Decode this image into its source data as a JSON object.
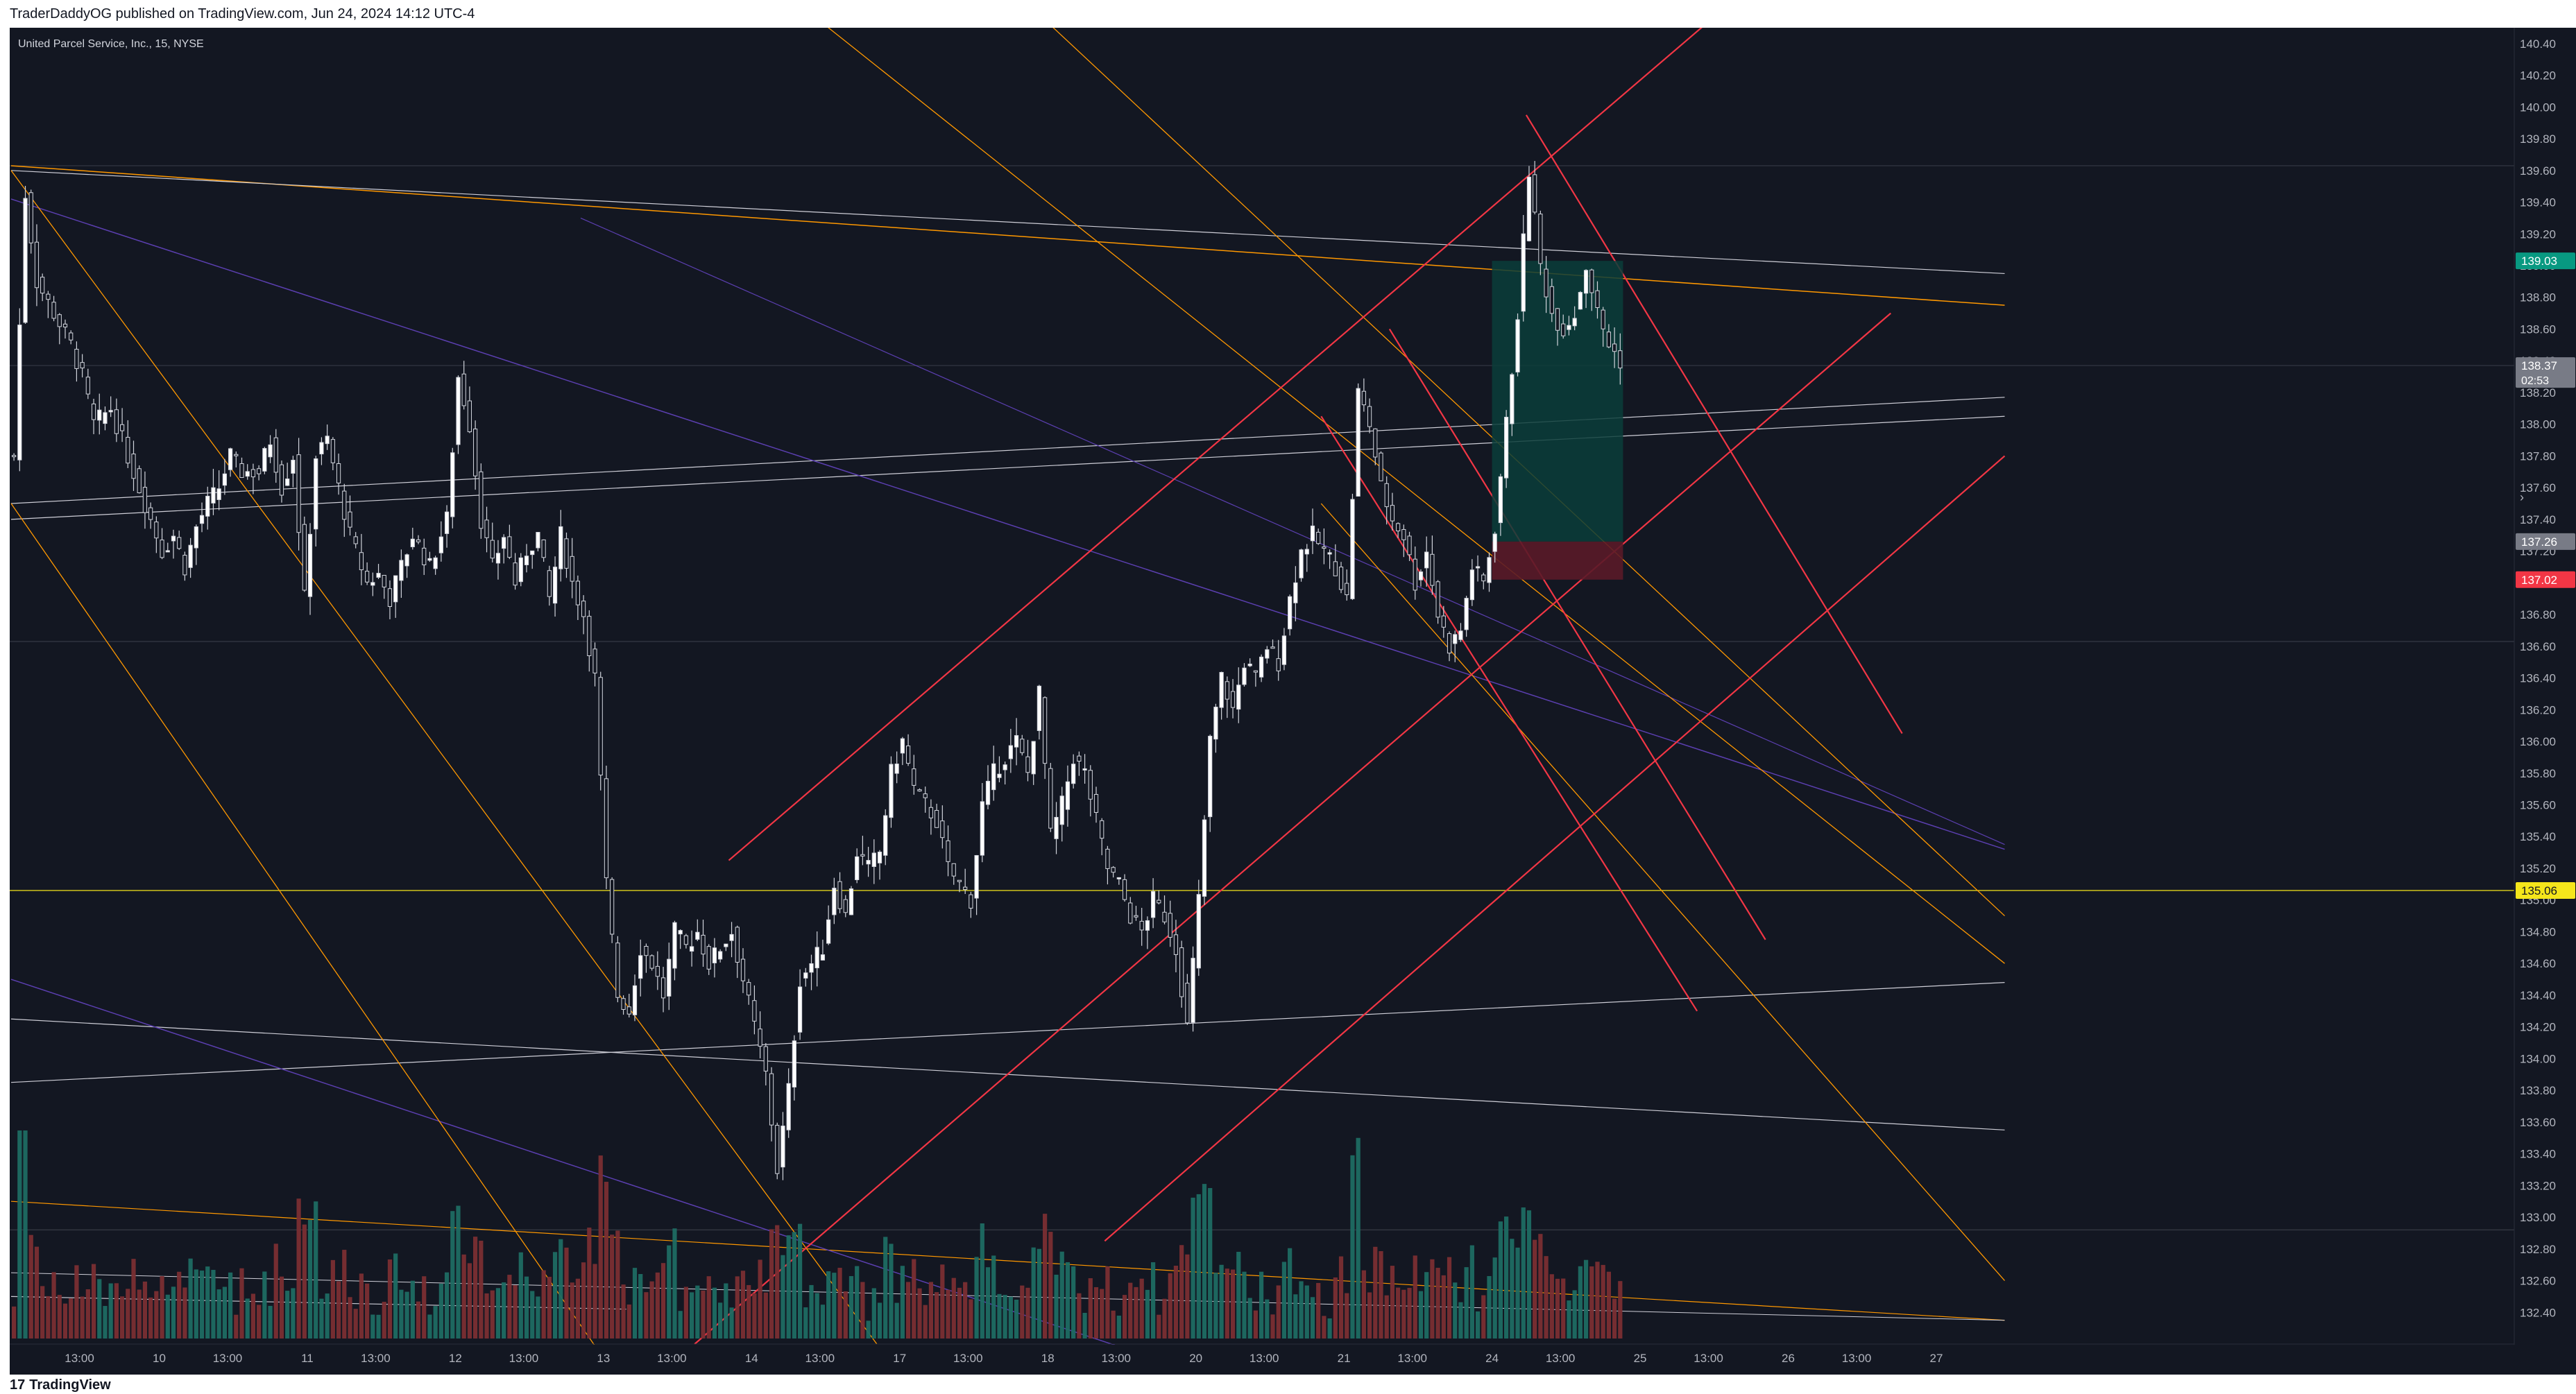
{
  "header": {
    "published_text": "TraderDaddyOG published on TradingView.com, Jun 24, 2024 14:12 UTC-4"
  },
  "footer": {
    "logo_mark": "17",
    "logo_text": "TradingView"
  },
  "chart_data": {
    "type": "candlestick",
    "symbol_title": "United Parcel Service, Inc., 15, NYSE",
    "y_axis": {
      "ylim": [
        132.2,
        140.5
      ],
      "ticks": [
        132.4,
        132.6,
        132.8,
        133.0,
        133.2,
        133.4,
        133.6,
        133.8,
        134.0,
        134.2,
        134.4,
        134.6,
        134.8,
        135.0,
        135.2,
        135.4,
        135.6,
        135.8,
        136.0,
        136.2,
        136.4,
        136.6,
        136.8,
        137.0,
        137.2,
        137.4,
        137.6,
        137.8,
        138.0,
        138.2,
        138.4,
        138.6,
        138.8,
        139.0,
        139.2,
        139.4,
        139.6,
        139.8,
        140.0,
        140.2,
        140.4
      ],
      "tick_labels": [
        "132.40",
        "132.60",
        "132.80",
        "133.00",
        "133.20",
        "133.40",
        "133.60",
        "133.80",
        "134.00",
        "134.20",
        "134.40",
        "134.60",
        "134.80",
        "135.00",
        "135.20",
        "135.40",
        "135.60",
        "135.80",
        "136.00",
        "136.20",
        "136.40",
        "136.60",
        "136.80",
        "137.00",
        "137.20",
        "137.40",
        "137.60",
        "137.80",
        "138.00",
        "138.20",
        "138.40",
        "138.60",
        "138.80",
        "139.00",
        "139.20",
        "139.40",
        "139.60",
        "139.80",
        "140.00",
        "140.20",
        "140.40"
      ]
    },
    "x_axis": {
      "labels": [
        {
          "text": "13:00",
          "bar": 12
        },
        {
          "text": "10",
          "bar": 26
        },
        {
          "text": "13:00",
          "bar": 38
        },
        {
          "text": "11",
          "bar": 52
        },
        {
          "text": "13:00",
          "bar": 64
        },
        {
          "text": "12",
          "bar": 78
        },
        {
          "text": "13:00",
          "bar": 90
        },
        {
          "text": "13",
          "bar": 104
        },
        {
          "text": "13:00",
          "bar": 116
        },
        {
          "text": "14",
          "bar": 130
        },
        {
          "text": "13:00",
          "bar": 142
        },
        {
          "text": "17",
          "bar": 156
        },
        {
          "text": "13:00",
          "bar": 168
        },
        {
          "text": "18",
          "bar": 182
        },
        {
          "text": "13:00",
          "bar": 194
        },
        {
          "text": "20",
          "bar": 208
        },
        {
          "text": "13:00",
          "bar": 220
        },
        {
          "text": "21",
          "bar": 234
        },
        {
          "text": "13:00",
          "bar": 246
        },
        {
          "text": "24",
          "bar": 260
        },
        {
          "text": "13:00",
          "bar": 272
        },
        {
          "text": "25",
          "bar": 286
        },
        {
          "text": "13:00",
          "bar": 298
        },
        {
          "text": "26",
          "bar": 312
        },
        {
          "text": "13:00",
          "bar": 324
        },
        {
          "text": "27",
          "bar": 338
        }
      ]
    },
    "price_labels": [
      {
        "text": "139.03",
        "value": 139.03,
        "color": "#089981"
      },
      {
        "text": "138.37",
        "value": 138.37,
        "color": "#787b86",
        "sub": "02:53"
      },
      {
        "text": "137.26",
        "value": 137.26,
        "color": "#787b86"
      },
      {
        "text": "137.02",
        "value": 137.02,
        "color": "#f23645"
      },
      {
        "text": "135.06",
        "value": 135.06,
        "color": "#f5e61b"
      }
    ],
    "close_path": [
      [
        0,
        137.8
      ],
      [
        2,
        139.45
      ],
      [
        4,
        138.9
      ],
      [
        7,
        138.7
      ],
      [
        10,
        138.5
      ],
      [
        12,
        138.3
      ],
      [
        14,
        138.0
      ],
      [
        17,
        138.1
      ],
      [
        20,
        137.8
      ],
      [
        24,
        137.4
      ],
      [
        26,
        137.2
      ],
      [
        28,
        137.3
      ],
      [
        30,
        137.1
      ],
      [
        32,
        137.35
      ],
      [
        34,
        137.5
      ],
      [
        36,
        137.6
      ],
      [
        38,
        137.8
      ],
      [
        40,
        137.7
      ],
      [
        43,
        137.7
      ],
      [
        45,
        137.9
      ],
      [
        47,
        137.6
      ],
      [
        49,
        137.8
      ],
      [
        51,
        136.9
      ],
      [
        53,
        137.8
      ],
      [
        55,
        137.9
      ],
      [
        57,
        137.6
      ],
      [
        59,
        137.3
      ],
      [
        62,
        137.0
      ],
      [
        64,
        137.05
      ],
      [
        66,
        136.9
      ],
      [
        68,
        137.1
      ],
      [
        70,
        137.3
      ],
      [
        73,
        137.1
      ],
      [
        76,
        137.4
      ],
      [
        78,
        138.3
      ],
      [
        80,
        138.0
      ],
      [
        82,
        137.4
      ],
      [
        84,
        137.1
      ],
      [
        86,
        137.3
      ],
      [
        88,
        137.0
      ],
      [
        90,
        137.2
      ],
      [
        92,
        137.3
      ],
      [
        94,
        136.9
      ],
      [
        96,
        137.3
      ],
      [
        98,
        137.0
      ],
      [
        100,
        136.8
      ],
      [
        102,
        136.4
      ],
      [
        104,
        135.1
      ],
      [
        106,
        134.4
      ],
      [
        108,
        134.3
      ],
      [
        110,
        134.7
      ],
      [
        112,
        134.6
      ],
      [
        114,
        134.4
      ],
      [
        116,
        134.8
      ],
      [
        118,
        134.7
      ],
      [
        120,
        134.8
      ],
      [
        122,
        134.6
      ],
      [
        124,
        134.7
      ],
      [
        126,
        134.8
      ],
      [
        128,
        134.5
      ],
      [
        130,
        134.2
      ],
      [
        132,
        133.9
      ],
      [
        134,
        133.3
      ],
      [
        136,
        133.8
      ],
      [
        138,
        134.5
      ],
      [
        140,
        134.6
      ],
      [
        142,
        134.7
      ],
      [
        144,
        135.1
      ],
      [
        146,
        134.9
      ],
      [
        148,
        135.3
      ],
      [
        150,
        135.2
      ],
      [
        152,
        135.3
      ],
      [
        154,
        135.8
      ],
      [
        156,
        136.0
      ],
      [
        158,
        135.7
      ],
      [
        160,
        135.6
      ],
      [
        162,
        135.5
      ],
      [
        164,
        135.2
      ],
      [
        166,
        135.1
      ],
      [
        168,
        135.0
      ],
      [
        170,
        135.6
      ],
      [
        172,
        135.8
      ],
      [
        174,
        135.9
      ],
      [
        176,
        136.0
      ],
      [
        178,
        135.8
      ],
      [
        180,
        136.3
      ],
      [
        182,
        135.4
      ],
      [
        184,
        135.6
      ],
      [
        186,
        135.9
      ],
      [
        188,
        135.8
      ],
      [
        190,
        135.5
      ],
      [
        192,
        135.2
      ],
      [
        194,
        135.1
      ],
      [
        196,
        134.9
      ],
      [
        198,
        134.8
      ],
      [
        200,
        135.0
      ],
      [
        202,
        134.9
      ],
      [
        204,
        134.7
      ],
      [
        206,
        134.2
      ],
      [
        208,
        135.0
      ],
      [
        210,
        136.0
      ],
      [
        212,
        136.4
      ],
      [
        214,
        136.2
      ],
      [
        216,
        136.5
      ],
      [
        218,
        136.4
      ],
      [
        220,
        136.6
      ],
      [
        222,
        136.5
      ],
      [
        224,
        136.9
      ],
      [
        226,
        137.2
      ],
      [
        228,
        137.3
      ],
      [
        230,
        137.2
      ],
      [
        232,
        137.1
      ],
      [
        234,
        136.9
      ],
      [
        236,
        138.2
      ],
      [
        238,
        138.0
      ],
      [
        240,
        137.6
      ],
      [
        242,
        137.4
      ],
      [
        244,
        137.3
      ],
      [
        246,
        137.0
      ],
      [
        248,
        137.2
      ],
      [
        250,
        136.8
      ],
      [
        252,
        136.6
      ],
      [
        254,
        136.7
      ],
      [
        256,
        137.1
      ],
      [
        258,
        137.0
      ],
      [
        260,
        137.35
      ],
      [
        262,
        138.0
      ],
      [
        264,
        138.7
      ],
      [
        266,
        139.6
      ],
      [
        268,
        139.0
      ],
      [
        270,
        138.7
      ],
      [
        272,
        138.6
      ],
      [
        274,
        138.7
      ],
      [
        276,
        139.0
      ],
      [
        278,
        138.7
      ],
      [
        280,
        138.5
      ],
      [
        282,
        138.4
      ]
    ],
    "volume_max": 2.0,
    "position_box": {
      "start_bar": 260,
      "end_bar": 283,
      "entry": 137.26,
      "target": 139.03,
      "stop": 137.02,
      "colors": {
        "profit": "#0b3d3a",
        "loss": "#5a1a28"
      }
    },
    "horizontal_lines": [
      {
        "value": 135.06,
        "color": "#f5e61b"
      },
      {
        "value": 139.63,
        "color": "#363a45"
      },
      {
        "value": 138.37,
        "color": "#363a45"
      },
      {
        "value": 136.63,
        "color": "#363a45"
      },
      {
        "value": 132.92,
        "color": "#363a45"
      }
    ],
    "trend_lines": [
      {
        "from": [
          0,
          139.63
        ],
        "to": [
          350,
          138.75
        ],
        "color": "#ff9800",
        "width": 1.5
      },
      {
        "from": [
          0,
          139.6
        ],
        "to": [
          350,
          138.95
        ],
        "color": "#cfcfd8",
        "width": 1.2
      },
      {
        "from": [
          0,
          137.4
        ],
        "to": [
          350,
          138.05
        ],
        "color": "#cfcfd8",
        "width": 1.2
      },
      {
        "from": [
          0,
          137.5
        ],
        "to": [
          350,
          138.17
        ],
        "color": "#cfcfd8",
        "width": 1.2
      },
      {
        "from": [
          0,
          133.85
        ],
        "to": [
          350,
          134.48
        ],
        "color": "#cfcfd8",
        "width": 1.2
      },
      {
        "from": [
          0,
          134.25
        ],
        "to": [
          350,
          133.55
        ],
        "color": "#cfcfd8",
        "width": 1.2
      },
      {
        "from": [
          0,
          132.5
        ],
        "to": [
          108,
          132.42
        ],
        "color": "#cfcfd8",
        "width": 1.2
      },
      {
        "from": [
          0,
          133.1
        ],
        "to": [
          350,
          132.35
        ],
        "color": "#ff9800",
        "width": 1.2
      },
      {
        "from": [
          0,
          132.65
        ],
        "to": [
          350,
          132.35
        ],
        "color": "#cfcfd8",
        "width": 1.0
      },
      {
        "from": [
          0,
          139.42
        ],
        "to": [
          350,
          135.32
        ],
        "color": "#5b3fb0",
        "width": 1.5
      },
      {
        "from": [
          100,
          139.3
        ],
        "to": [
          350,
          135.35
        ],
        "color": "#5b3fb0",
        "width": 1.2
      },
      {
        "from": [
          0,
          134.5
        ],
        "to": [
          210,
          132.0
        ],
        "color": "#5b3fb0",
        "width": 1.5
      },
      {
        "from": [
          0,
          139.6
        ],
        "to": [
          152,
          132.2
        ],
        "color": "#ff9800",
        "width": 1.3
      },
      {
        "from": [
          0,
          137.5
        ],
        "to": [
          110,
          131.8
        ],
        "color": "#ff9800",
        "width": 1.3
      },
      {
        "from": [
          140,
          140.6
        ],
        "to": [
          350,
          134.6
        ],
        "color": "#ff9800",
        "width": 1.3
      },
      {
        "from": [
          180,
          140.6
        ],
        "to": [
          350,
          134.9
        ],
        "color": "#ff9800",
        "width": 1.3
      },
      {
        "from": [
          230,
          137.5
        ],
        "to": [
          350,
          132.6
        ],
        "color": "#ff9800",
        "width": 1.3
      },
      {
        "from": [
          126,
          135.25
        ],
        "to": [
          300,
          140.6
        ],
        "color": "#f23645",
        "width": 2.2
      },
      {
        "from": [
          120,
          132.2
        ],
        "to": [
          330,
          138.7
        ],
        "color": "#f23645",
        "width": 2.2
      },
      {
        "from": [
          192,
          132.85
        ],
        "to": [
          350,
          137.8
        ],
        "color": "#f23645",
        "width": 2.2
      },
      {
        "from": [
          242,
          138.6
        ],
        "to": [
          308,
          134.75
        ],
        "color": "#f23645",
        "width": 2.2
      },
      {
        "from": [
          230,
          138.05
        ],
        "to": [
          296,
          134.3
        ],
        "color": "#f23645",
        "width": 2.2
      },
      {
        "from": [
          266,
          139.95
        ],
        "to": [
          332,
          136.05
        ],
        "color": "#f23645",
        "width": 2.2
      }
    ]
  }
}
